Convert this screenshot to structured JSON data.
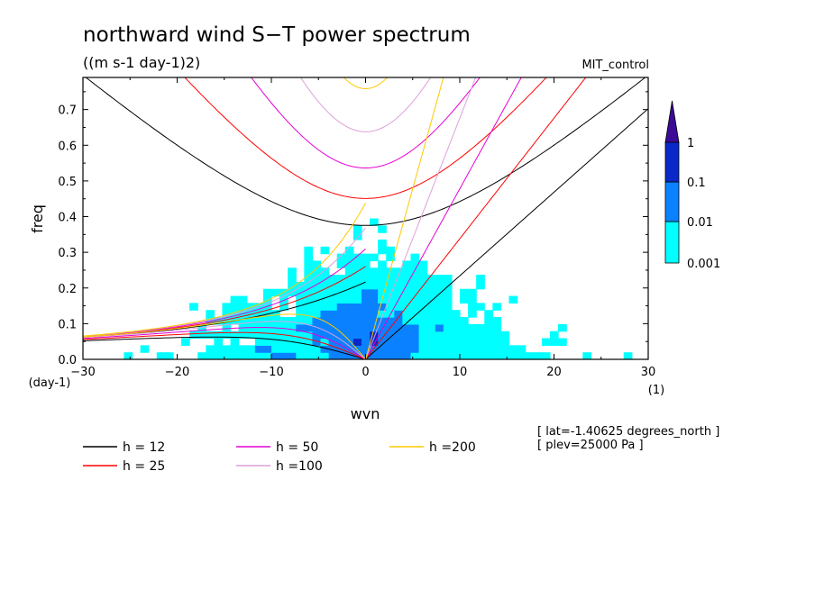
{
  "chart_data": {
    "type": "heatmap",
    "title": "northward wind S−T power spectrum",
    "subtitle": "((m s-1 day-1)2)",
    "run_label": "MIT_control",
    "xlabel": "wvn",
    "ylabel": "freq",
    "x_unit": "(1)",
    "y_unit": "(day-1)",
    "xlim": [
      -30,
      30
    ],
    "ylim": [
      0,
      0.79
    ],
    "x_ticks": [
      -30,
      -20,
      -10,
      0,
      10,
      20,
      30
    ],
    "x_tick_labels": [
      "−30",
      "−20",
      "−10",
      "0",
      "10",
      "20",
      "30"
    ],
    "y_ticks": [
      0.0,
      0.1,
      0.2,
      0.3,
      0.4,
      0.5,
      0.6,
      0.7
    ],
    "y_tick_labels": [
      "0.0",
      "0.1",
      "0.2",
      "0.3",
      "0.4",
      "0.5",
      "0.6",
      "0.7"
    ],
    "colorbar": {
      "levels": [
        0.001,
        0.01,
        0.1,
        1
      ],
      "labels": [
        "0.001",
        "0.01",
        "0.1",
        "1"
      ],
      "colors": [
        "#00ffff",
        "#0a82ff",
        "#0a28c8",
        "#3c0a96"
      ]
    },
    "dispersion_curves": [
      {
        "label": "h = 12",
        "h": 12,
        "color": "#000000"
      },
      {
        "label": "h = 25",
        "h": 25,
        "color": "#ff0000"
      },
      {
        "label": "h = 50",
        "h": 50,
        "color": "#e600d2"
      },
      {
        "label": "h =100",
        "h": 100,
        "color": "#dca0dc"
      },
      {
        "label": "h =200",
        "h": 200,
        "color": "#ffc800"
      }
    ],
    "annotations": [
      "[ lat=-1.40625 degrees_north ]",
      "[ plev=25000 Pa ]"
    ],
    "grid": false
  }
}
